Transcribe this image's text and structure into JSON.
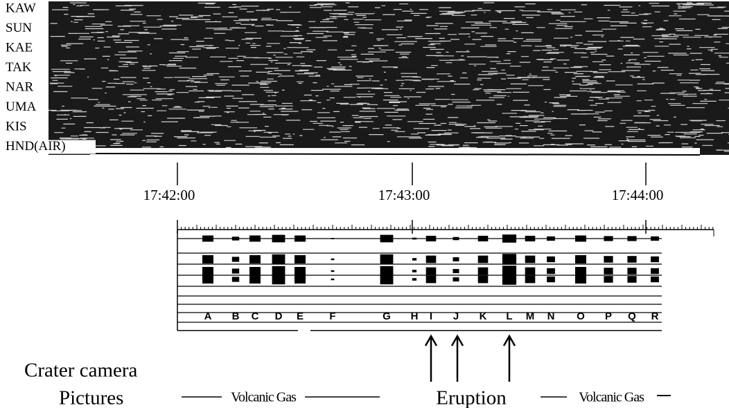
{
  "stations": [
    "KAW",
    "SUN",
    "KAE",
    "TAK",
    "NAR",
    "UMA",
    "KIS",
    "HND(AIR)"
  ],
  "time_labels": [
    "17:42:00",
    "17:43:00",
    "17:44:00"
  ],
  "events": [
    "A",
    "B",
    "C",
    "D",
    "E",
    "F",
    "G",
    "H",
    "I",
    "J",
    "K",
    "L",
    "M",
    "N",
    "O",
    "P",
    "Q",
    "R"
  ],
  "annotations": {
    "camera": "Crater camera",
    "pictures": "Pictures",
    "gas_before": "Volcanic Gas",
    "eruption": "Eruption",
    "gas_after": "Volcanic Gas"
  }
}
